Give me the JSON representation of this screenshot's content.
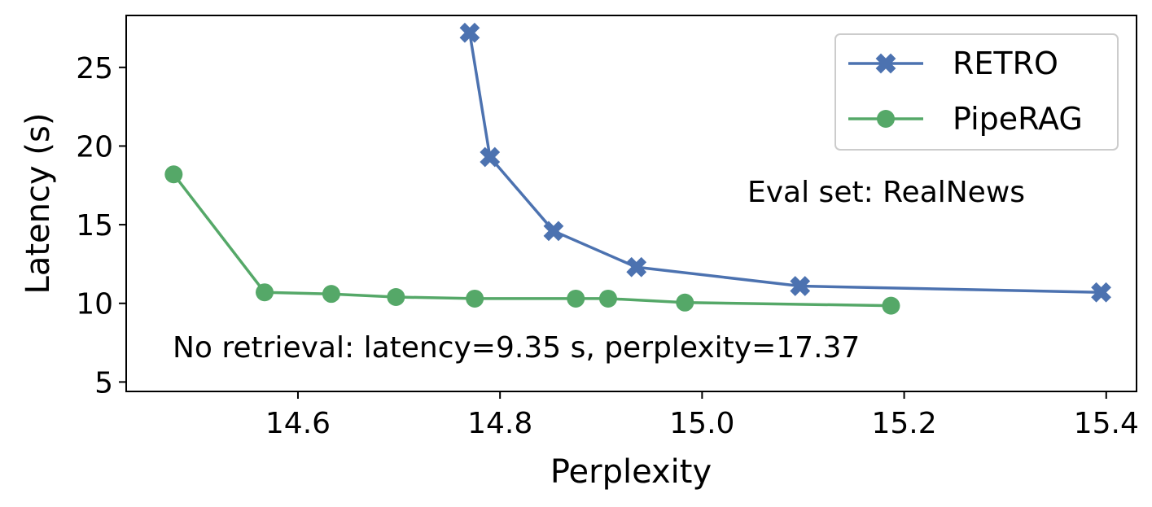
{
  "chart_data": {
    "type": "line",
    "title": "",
    "xlabel": "Perplexity",
    "ylabel": "Latency (s)",
    "xlim": [
      14.43,
      15.43
    ],
    "ylim": [
      4.4,
      28.3
    ],
    "xticks": [
      14.6,
      14.8,
      15.0,
      15.2,
      15.4
    ],
    "xtick_labels": [
      "14.6",
      "14.8",
      "15.0",
      "15.2",
      "15.4"
    ],
    "yticks": [
      5,
      10,
      15,
      20,
      25
    ],
    "ytick_labels": [
      "5",
      "10",
      "15",
      "20",
      "25"
    ],
    "grid": false,
    "legend_position": "top-right",
    "series": [
      {
        "name": "RETRO",
        "color": "#4c72b0",
        "marker": "x",
        "x": [
          14.77,
          14.79,
          14.853,
          14.935,
          15.097,
          15.395
        ],
        "y": [
          27.2,
          19.3,
          14.6,
          12.3,
          11.1,
          10.7
        ]
      },
      {
        "name": "PipeRAG",
        "color": "#55a868",
        "marker": "o",
        "x": [
          14.477,
          14.567,
          14.633,
          14.697,
          14.775,
          14.875,
          14.907,
          14.983,
          15.187
        ],
        "y": [
          18.2,
          10.7,
          10.6,
          10.4,
          10.3,
          10.3,
          10.3,
          10.05,
          9.85
        ]
      }
    ],
    "annotations": [
      {
        "id": "eval-set",
        "text": "Eval set: RealNews",
        "position": "right-middle"
      },
      {
        "id": "no-retrieval",
        "text": "No retrieval: latency=9.35 s, perplexity=17.37",
        "position": "bottom-left"
      }
    ]
  }
}
